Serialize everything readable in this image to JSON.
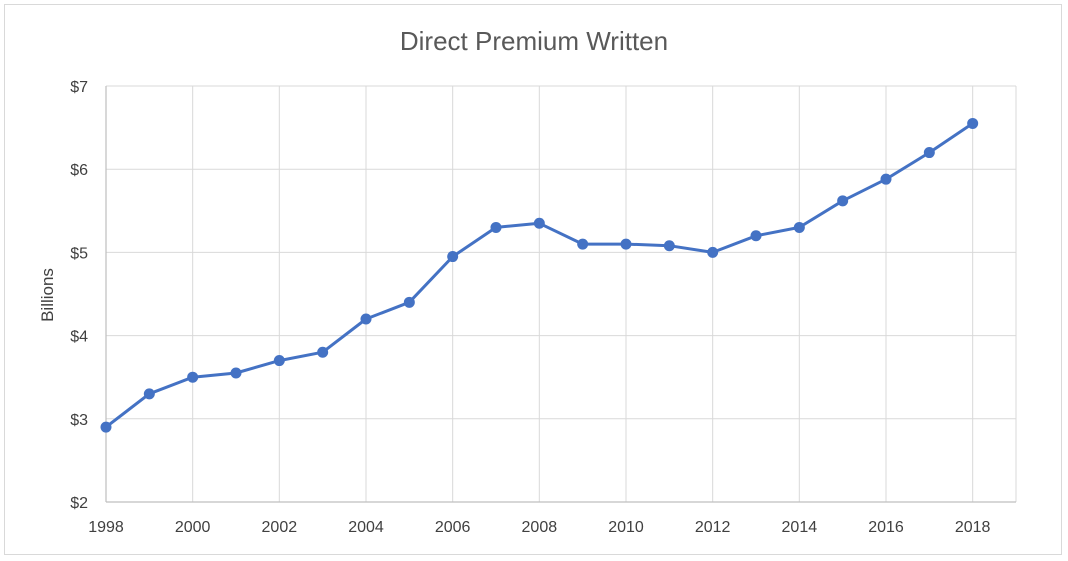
{
  "chart_data": {
    "type": "line",
    "title": "Direct Premium Written",
    "xlabel": "",
    "ylabel": "Billions",
    "x": [
      1998,
      1999,
      2000,
      2001,
      2002,
      2003,
      2004,
      2005,
      2006,
      2007,
      2008,
      2009,
      2010,
      2011,
      2012,
      2013,
      2014,
      2015,
      2016,
      2017,
      2018
    ],
    "series": [
      {
        "values": [
          2.9,
          3.3,
          3.5,
          3.55,
          3.7,
          3.8,
          4.2,
          4.4,
          4.95,
          5.3,
          5.35,
          5.1,
          5.1,
          5.08,
          5.0,
          5.2,
          5.3,
          5.62,
          5.88,
          6.2,
          6.55
        ]
      }
    ],
    "xticks": [
      "1998",
      "2000",
      "2002",
      "2004",
      "2006",
      "2008",
      "2010",
      "2012",
      "2014",
      "2016",
      "2018"
    ],
    "yticks": [
      "$2",
      "$3",
      "$4",
      "$5",
      "$6",
      "$7"
    ],
    "ylim": [
      2,
      7
    ],
    "xlim": [
      1998,
      2019
    ],
    "grid": true,
    "colors": {
      "line": "#4472c4",
      "grid": "#d9d9d9",
      "axis": "#bfbfbf"
    }
  }
}
